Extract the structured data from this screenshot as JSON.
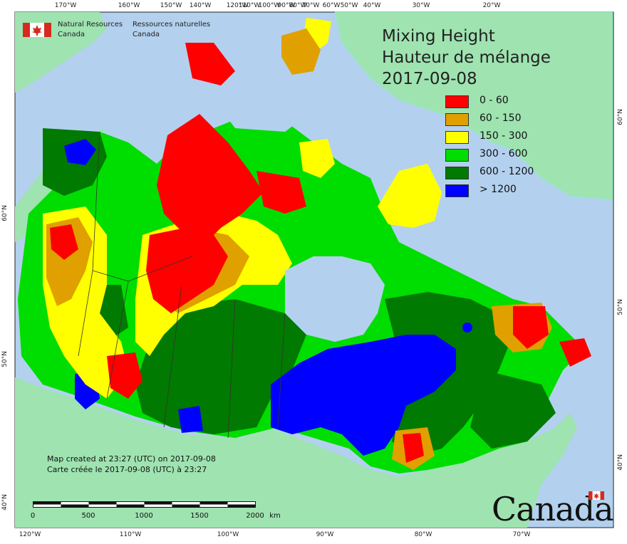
{
  "map": {
    "title_en": "Mixing Height",
    "title_fr": "Hauteur de mélange",
    "date": "2017-09-08",
    "agency_en_line1": "Natural Resources",
    "agency_en_line2": "Canada",
    "agency_fr_line1": "Ressources naturelles",
    "agency_fr_line2": "Canada",
    "created_en": "Map created at 23:27 (UTC) on 2017-09-08",
    "created_fr": "Carte créée le 2017-09-08 (UTC) à 23:27",
    "wordmark": "Canada",
    "scale": {
      "labels": [
        "0",
        "500",
        "1000",
        "1500",
        "2000"
      ],
      "unit": "km"
    }
  },
  "legend": [
    {
      "label": "0 - 60",
      "color": "#ff0000"
    },
    {
      "label": "60 - 150",
      "color": "#e0a000"
    },
    {
      "label": "150 - 300",
      "color": "#ffff00"
    },
    {
      "label": "300 - 600",
      "color": "#00dd00"
    },
    {
      "label": "600 - 1200",
      "color": "#007a00"
    },
    {
      "label": "> 1200",
      "color": "#0000ff"
    }
  ],
  "graticule": {
    "top": [
      "170°W",
      "160°W",
      "150°W",
      "140°W",
      "120°W",
      "110°W",
      "100°W",
      "90°W",
      "80°W",
      "70°W",
      "60°W",
      "50°W",
      "40°W",
      "30°W",
      "20°W"
    ],
    "bottom": [
      "120°W",
      "110°W",
      "100°W",
      "90°W",
      "80°W",
      "70°W"
    ],
    "left": [
      "60°N",
      "50°N",
      "40°N"
    ],
    "right": [
      "60°N",
      "50°N",
      "40°N"
    ]
  },
  "colors": {
    "ocean": "#b3d1ee",
    "land_other": "#9ee3b0",
    "border": "#333333"
  }
}
